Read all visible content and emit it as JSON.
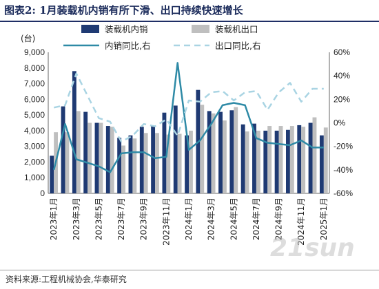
{
  "title": "图表2:  1月装载机内销有所下滑、出口持续快速增长",
  "source": "资料来源:工程机械协会,华泰研究",
  "watermark": "21sun",
  "colors": {
    "domestic": "#1f3a73",
    "export": "#bfbfbf",
    "domestic_yoy": "#2e8aa6",
    "export_yoy": "#a9d4e3"
  },
  "chart_data": {
    "type": "bar",
    "ylabel_left": "(台)",
    "ylim_left": [
      0,
      9000
    ],
    "yticks_left": [
      "0",
      "1,000",
      "2,000",
      "3,000",
      "4,000",
      "5,000",
      "6,000",
      "7,000",
      "8,000",
      "9,000"
    ],
    "ylim_right": [
      -60,
      60
    ],
    "yticks_right": [
      "-60%",
      "-40%",
      "-20%",
      "0%",
      "20%",
      "40%",
      "60%"
    ],
    "categories": [
      "2023年1月",
      "2023年2月",
      "2023年3月",
      "2023年4月",
      "2023年5月",
      "2023年6月",
      "2023年7月",
      "2023年8月",
      "2023年9月",
      "2023年10月",
      "2023年11月",
      "2023年12月",
      "2024年1月",
      "2024年2月",
      "2024年3月",
      "2024年4月",
      "2024年5月",
      "2024年6月",
      "2024年7月",
      "2024年8月",
      "2024年9月",
      "2024年10月",
      "2024年11月",
      "2024年12月",
      "2025年1月"
    ],
    "xtick_labels": [
      "2023年1月",
      "2023年3月",
      "2023年5月",
      "2023年7月",
      "2023年9月",
      "2023年11月",
      "2024年1月",
      "2024年3月",
      "2024年5月",
      "2024年7月",
      "2024年9月",
      "2024年11月",
      "2025年1月"
    ],
    "legend": [
      "装载机内销",
      "装载机出口",
      "内销同比,右",
      "出口同比,右"
    ],
    "series": [
      {
        "name": "装载机内销",
        "type": "bar",
        "axis": "left",
        "values": [
          2400,
          5550,
          7800,
          5200,
          4500,
          4300,
          3550,
          3700,
          4250,
          4300,
          5150,
          5600,
          3700,
          6600,
          5250,
          5200,
          5300,
          4400,
          4450,
          4000,
          4000,
          4050,
          4350,
          4500,
          3700
        ]
      },
      {
        "name": "装载机出口",
        "type": "bar",
        "axis": "left",
        "values": [
          3900,
          3900,
          5250,
          4500,
          4500,
          4250,
          3050,
          3500,
          3850,
          3850,
          3750,
          3800,
          4000,
          5650,
          5100,
          4650,
          5500,
          3950,
          4000,
          4300,
          4300,
          4300,
          4250,
          4850,
          4200
        ]
      },
      {
        "name": "内销同比,右",
        "type": "line",
        "axis": "right",
        "values": [
          -40,
          -1,
          -31,
          -34,
          -37,
          -42,
          -26,
          -25,
          -25,
          -30,
          -29,
          51,
          -23,
          -15,
          -1,
          15,
          17,
          15,
          -13,
          -17,
          -18,
          -19,
          -15,
          -21,
          -21
        ]
      },
      {
        "name": "出口同比,右",
        "type": "line",
        "axis": "right",
        "values": [
          13,
          15,
          42,
          23,
          4,
          1,
          -16,
          -11,
          -1,
          -3,
          3,
          -11,
          19,
          18,
          26,
          27,
          19,
          26,
          27,
          11,
          26,
          34,
          18,
          29,
          29
        ]
      }
    ]
  }
}
